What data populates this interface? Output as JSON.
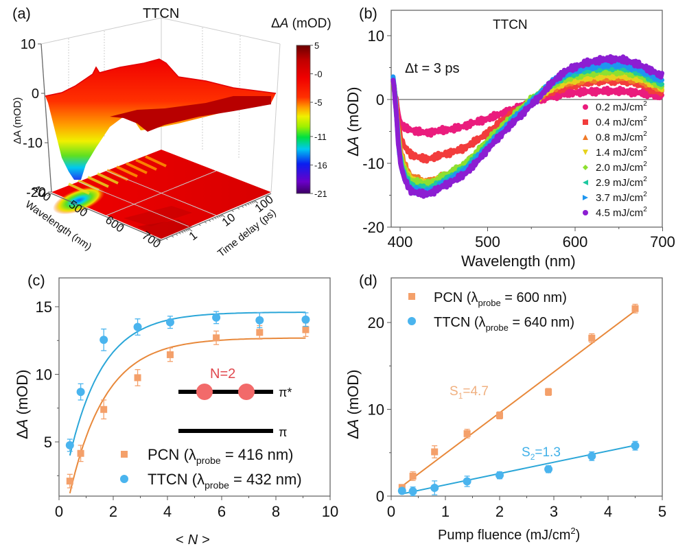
{
  "figure": {
    "panels": [
      "(a)",
      "(b)",
      "(c)",
      "(d)"
    ]
  },
  "chart_data": [
    {
      "id": "a",
      "type": "heatmap",
      "panel_label": "(a)",
      "title": "TTCN",
      "subtype": "3d-surface-with-contour-projection",
      "zlabel": "ΔA (mOD)",
      "xlabel": "Wavelength (nm)",
      "ylabel": "Time delay (ps)",
      "x_ticks": [
        "400",
        "500",
        "600",
        "700"
      ],
      "y_ticks": [
        "1",
        "10",
        "100"
      ],
      "z_ticks": [
        "10",
        "0",
        "-10",
        "-20"
      ],
      "zlim": [
        -20,
        10
      ],
      "colorbar": {
        "title": "ΔA (mOD)",
        "ticks": [
          "5",
          "-0",
          "-5",
          "-11",
          "-16",
          "-21"
        ],
        "range": [
          -21,
          5
        ],
        "colors": [
          "#3a0062",
          "#6a00c8",
          "#0a1ef0",
          "#00c8f0",
          "#00e040",
          "#9cf000",
          "#f0f000",
          "#ffa000",
          "#ff3000",
          "#f00000",
          "#c00000",
          "#6a0000"
        ]
      },
      "surface_profile_wavelength": [
        400,
        420,
        440,
        460,
        480,
        500,
        530,
        560,
        600,
        650,
        700
      ],
      "surface_profile_early_dA": [
        0,
        -14,
        -17,
        -12,
        -9,
        -6,
        -3,
        -1,
        2,
        3,
        1
      ]
    },
    {
      "id": "b",
      "type": "scatter",
      "panel_label": "(b)",
      "title": "TTCN",
      "annotation": "Δt = 3 ps",
      "xlabel": "Wavelength (nm)",
      "ylabel": "ΔA (mOD)",
      "xlim": [
        390,
        700
      ],
      "ylim": [
        -20,
        13
      ],
      "x_ticks": [
        400,
        500,
        600,
        700
      ],
      "y_ticks": [
        10,
        0,
        -10,
        -20
      ],
      "zero_line": true,
      "legend_position": "bottom-right",
      "x": [
        392,
        400,
        410,
        420,
        430,
        440,
        450,
        460,
        470,
        480,
        500,
        520,
        540,
        560,
        575,
        590,
        610,
        630,
        650,
        670,
        690,
        700
      ],
      "series": [
        {
          "name": "0.2 mJ/cm²",
          "color": "#ea1c7d",
          "marker": "circle",
          "values": [
            2.5,
            -3.5,
            -4.6,
            -5.0,
            -5.2,
            -5.0,
            -4.8,
            -4.6,
            -4.3,
            -3.8,
            -3.0,
            -2.0,
            -1.0,
            0.0,
            0.5,
            0.9,
            1.2,
            1.3,
            1.3,
            1.1,
            0.7,
            0.5
          ]
        },
        {
          "name": "0.4 mJ/cm²",
          "color": "#f23c3c",
          "marker": "square",
          "values": [
            2.8,
            -5.5,
            -8.2,
            -9.0,
            -9.3,
            -9.0,
            -8.6,
            -8.2,
            -7.8,
            -7.0,
            -5.2,
            -3.0,
            -1.2,
            0.5,
            1.3,
            2.0,
            2.6,
            2.9,
            2.9,
            2.6,
            1.5,
            1.0
          ]
        },
        {
          "name": "0.8 mJ/cm²",
          "color": "#f07a28",
          "marker": "triangle-up",
          "values": [
            3.0,
            -7.5,
            -11.5,
            -12.5,
            -12.9,
            -12.6,
            -12.0,
            -11.4,
            -10.6,
            -9.4,
            -6.8,
            -4.2,
            -1.8,
            0.5,
            1.8,
            2.6,
            3.1,
            3.4,
            3.5,
            3.1,
            2.2,
            1.6
          ]
        },
        {
          "name": "1.4 mJ/cm²",
          "color": "#e6d21e",
          "marker": "triangle-down",
          "values": [
            3.1,
            -8.0,
            -12.0,
            -12.9,
            -13.2,
            -12.9,
            -12.3,
            -11.6,
            -10.8,
            -9.6,
            -6.9,
            -4.3,
            -1.8,
            0.5,
            1.9,
            2.8,
            3.4,
            3.7,
            3.8,
            3.4,
            2.5,
            1.8
          ]
        },
        {
          "name": "2.0 mJ/cm²",
          "color": "#8ee030",
          "marker": "diamond",
          "values": [
            3.2,
            -8.5,
            -12.3,
            -13.0,
            -13.2,
            -12.8,
            -12.0,
            -11.3,
            -10.5,
            -9.3,
            -6.5,
            -3.8,
            -1.2,
            1.0,
            2.4,
            3.3,
            4.0,
            4.4,
            4.4,
            4.0,
            2.8,
            2.0
          ]
        },
        {
          "name": "2.9 mJ/cm²",
          "color": "#1ec8a0",
          "marker": "triangle-left",
          "values": [
            3.3,
            -9.0,
            -13.0,
            -13.8,
            -14.0,
            -13.6,
            -12.8,
            -12.0,
            -11.2,
            -10.0,
            -7.2,
            -4.4,
            -1.7,
            0.8,
            2.6,
            3.8,
            4.6,
            5.0,
            5.1,
            4.5,
            3.2,
            2.5
          ]
        },
        {
          "name": "3.7 mJ/cm²",
          "color": "#1e96f0",
          "marker": "triangle-right",
          "values": [
            3.3,
            -9.3,
            -13.5,
            -14.3,
            -14.5,
            -14.0,
            -13.2,
            -12.4,
            -11.5,
            -10.3,
            -7.4,
            -4.5,
            -1.8,
            0.8,
            2.8,
            4.1,
            5.0,
            5.4,
            5.5,
            4.9,
            3.7,
            3.0
          ]
        },
        {
          "name": "4.5 mJ/cm²",
          "color": "#8c1ed2",
          "marker": "circle",
          "values": [
            3.0,
            -9.5,
            -13.8,
            -14.6,
            -14.8,
            -14.3,
            -13.5,
            -12.8,
            -12.0,
            -10.8,
            -7.8,
            -4.9,
            -2.2,
            0.5,
            2.8,
            4.5,
            5.6,
            6.2,
            6.3,
            5.6,
            4.4,
            3.6
          ]
        }
      ]
    },
    {
      "id": "c",
      "type": "scatter",
      "panel_label": "(c)",
      "xlabel": "< N >",
      "ylabel": "ΔA (mOD)",
      "xlim": [
        0,
        10
      ],
      "ylim": [
        1,
        16.5
      ],
      "x_ticks": [
        0,
        2,
        4,
        6,
        8,
        10
      ],
      "y_ticks": [
        5,
        10,
        15
      ],
      "legend_position": "bottom-right",
      "x": [
        0.4,
        0.8,
        1.65,
        2.9,
        4.1,
        5.8,
        7.4,
        9.1
      ],
      "series": [
        {
          "name": "PCN",
          "probe": "416 nm",
          "color": "#f4a06a",
          "line_color": "#e8883a",
          "marker": "square",
          "values": [
            2.1,
            4.15,
            7.4,
            9.75,
            11.45,
            12.7,
            13.1,
            13.3
          ],
          "errors": [
            0.5,
            0.6,
            0.7,
            0.6,
            0.5,
            0.5,
            0.5,
            0.5
          ],
          "fit": {
            "model": "saturation",
            "amplitude": 12.7,
            "rate": 0.75,
            "offset": 1.2
          }
        },
        {
          "name": "TTCN",
          "probe": "432 nm",
          "color": "#4ab4ee",
          "line_color": "#2aa6d8",
          "marker": "circle",
          "values": [
            4.75,
            8.7,
            12.55,
            13.5,
            13.85,
            14.2,
            14.0,
            14.05
          ],
          "errors": [
            0.45,
            0.6,
            0.8,
            0.6,
            0.45,
            0.45,
            0.55,
            0.5
          ],
          "fit": {
            "model": "saturation",
            "amplitude": 14.6,
            "rate": 0.8,
            "offset": 4.0
          }
        }
      ],
      "inset": {
        "label": "N=2",
        "label_color": "#e0484e",
        "upper_level": "π*",
        "lower_level": "π",
        "electron_color": "#f26a6a",
        "electron_count": 2
      }
    },
    {
      "id": "d",
      "type": "scatter",
      "panel_label": "(d)",
      "xlabel": "Pump fluence (mJ/cm²)",
      "ylabel": "ΔA (mOD)",
      "xlim": [
        0,
        5
      ],
      "ylim": [
        0,
        25.5
      ],
      "x_ticks": [
        0,
        1,
        2,
        3,
        4,
        5
      ],
      "y_ticks": [
        0,
        10,
        20
      ],
      "legend_position": "top-left",
      "x": [
        0.2,
        0.4,
        0.8,
        1.4,
        2.0,
        2.9,
        3.7,
        4.5
      ],
      "series": [
        {
          "name": "PCN",
          "probe": "600 nm",
          "color": "#f4a06a",
          "line_color": "#e8883a",
          "marker": "square",
          "values": [
            1.0,
            2.3,
            5.1,
            7.2,
            9.3,
            12.0,
            18.2,
            21.6
          ],
          "errors": [
            0.3,
            0.5,
            0.7,
            0.5,
            0.4,
            0.4,
            0.5,
            0.5
          ],
          "fit": {
            "slope_label": "S1=4.7",
            "slope": 4.7,
            "intercept": 0.2
          }
        },
        {
          "name": "TTCN",
          "probe": "640 nm",
          "color": "#4ab4ee",
          "line_color": "#2aa6d8",
          "marker": "circle",
          "values": [
            0.6,
            0.55,
            0.95,
            1.7,
            2.4,
            3.1,
            4.6,
            5.8
          ],
          "errors": [
            0.3,
            0.5,
            0.8,
            0.6,
            0.4,
            0.4,
            0.5,
            0.5
          ],
          "fit": {
            "slope_label": "S2=1.3",
            "slope": 1.3,
            "intercept": 0.0
          }
        }
      ]
    }
  ],
  "texts": {
    "a_title": "TTCN",
    "a_colorbar_title_delta": "Δ",
    "a_colorbar_title_A": "A",
    "a_colorbar_title_unit": " (mOD)",
    "a_zlabel": "ΔA (mOD)",
    "a_xlabel": "Wavelength (nm)",
    "a_ylabel": "Time delay (ps)",
    "b_title": "TTCN",
    "b_annotation": "Δt = 3 ps",
    "b_xlabel": "Wavelength (nm)",
    "c_xlabel_l": "<",
    "c_xlabel_n": "N",
    "c_xlabel_r": ">",
    "d_xlabel": "Pump fluence (mJ/cm",
    "d_xlabel_sup": "2",
    "d_xlabel_end": ")",
    "ylabel_delta": "Δ",
    "ylabel_A": "A",
    "ylabel_unit": " (mOD)",
    "legend_probe_pre": "(λ",
    "legend_probe_sub": "probe",
    "legend_probe_eq": " = ",
    "legend_unit_sup": "2",
    "d_s1_S": "S",
    "d_s1_sub": "1",
    "d_s1_val": "=4.7",
    "d_s2_S": "S",
    "d_s2_sub": "2",
    "d_s2_val": "=1.3"
  }
}
